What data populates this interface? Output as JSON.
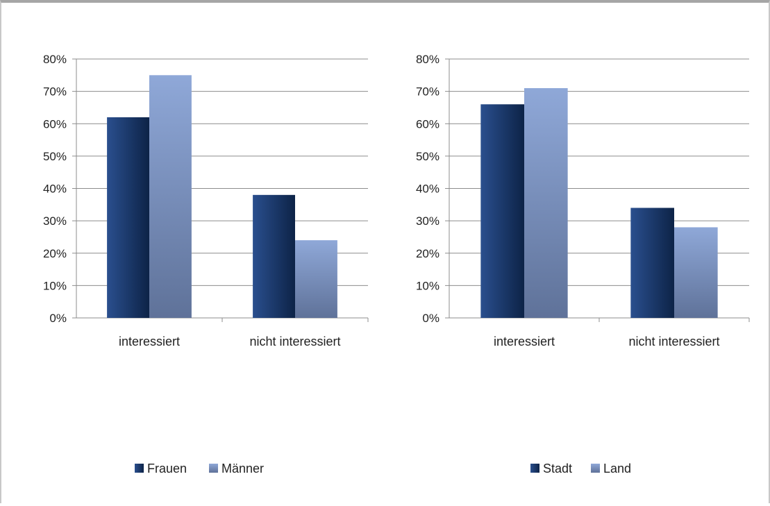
{
  "chart_data": [
    {
      "type": "bar",
      "categories": [
        "interessiert",
        "nicht interessiert"
      ],
      "series": [
        {
          "name": "Frauen",
          "values": [
            0.62,
            0.38
          ],
          "color": "#1f3f75"
        },
        {
          "name": "Männer",
          "values": [
            0.75,
            0.24
          ],
          "color": "#8ea6d3"
        }
      ],
      "yticks": [
        "0%",
        "10%",
        "20%",
        "30%",
        "40%",
        "50%",
        "60%",
        "70%",
        "80%"
      ],
      "ylim": [
        0,
        0.8
      ],
      "grid": true,
      "legend": "bottom"
    },
    {
      "type": "bar",
      "categories": [
        "interessiert",
        "nicht interessiert"
      ],
      "series": [
        {
          "name": "Stadt",
          "values": [
            0.66,
            0.34
          ],
          "color": "#1f3f75"
        },
        {
          "name": "Land",
          "values": [
            0.71,
            0.28
          ],
          "color": "#8ea6d3"
        }
      ],
      "yticks": [
        "0%",
        "10%",
        "20%",
        "30%",
        "40%",
        "50%",
        "60%",
        "70%",
        "80%"
      ],
      "ylim": [
        0,
        0.8
      ],
      "grid": true,
      "legend": "bottom"
    }
  ]
}
